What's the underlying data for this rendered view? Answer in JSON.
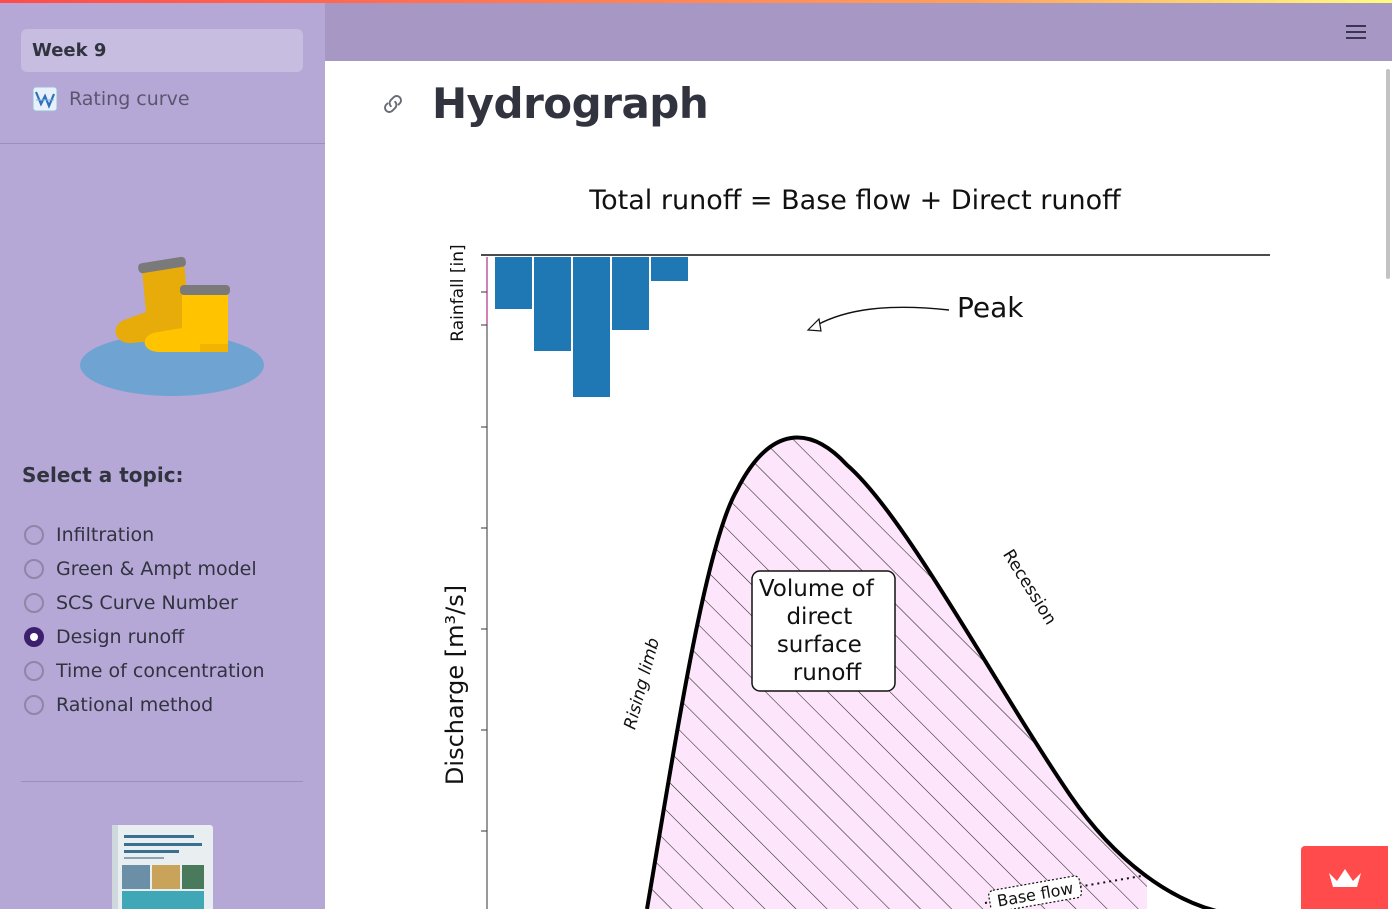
{
  "sidebar": {
    "nav": {
      "week_label": "Week 9",
      "rating_label": "Rating curve"
    },
    "topic_title": "Select a topic:",
    "topics": [
      {
        "label": "Infiltration",
        "selected": false
      },
      {
        "label": "Green & Ampt model",
        "selected": false
      },
      {
        "label": "SCS Curve Number",
        "selected": false
      },
      {
        "label": "Design runoff",
        "selected": true
      },
      {
        "label": "Time of concentration",
        "selected": false
      },
      {
        "label": "Rational method",
        "selected": false
      }
    ],
    "icons": {
      "rating": "chart-icon",
      "illustration": "rain-boots-icon",
      "book": "book-cover-icon"
    }
  },
  "header": {
    "menu_icon": "hamburger-menu-icon"
  },
  "main": {
    "title": "Hydrograph",
    "anchor_icon": "link-icon"
  },
  "figure": {
    "title": "Total runoff = Base flow + Direct runoff",
    "rain_axis_label": "Rainfall [in]",
    "flow_axis_label": "Discharge [m³/s]",
    "annotations": {
      "peak": "Peak",
      "rising": "Rising limb",
      "recession": "Recession",
      "volume": [
        "Volume of",
        "direct",
        "surface",
        "runoff"
      ],
      "baseflow": "Base flow"
    },
    "rain_color": "#1f77b4",
    "hatch_fill": "#fde6fb"
  },
  "colors": {
    "sidebar_bg": "#b5a8d6",
    "header_bg": "#a697c5",
    "radio_selected": "#3d1f6e",
    "deploy_badge": "#ff4b4b"
  }
}
